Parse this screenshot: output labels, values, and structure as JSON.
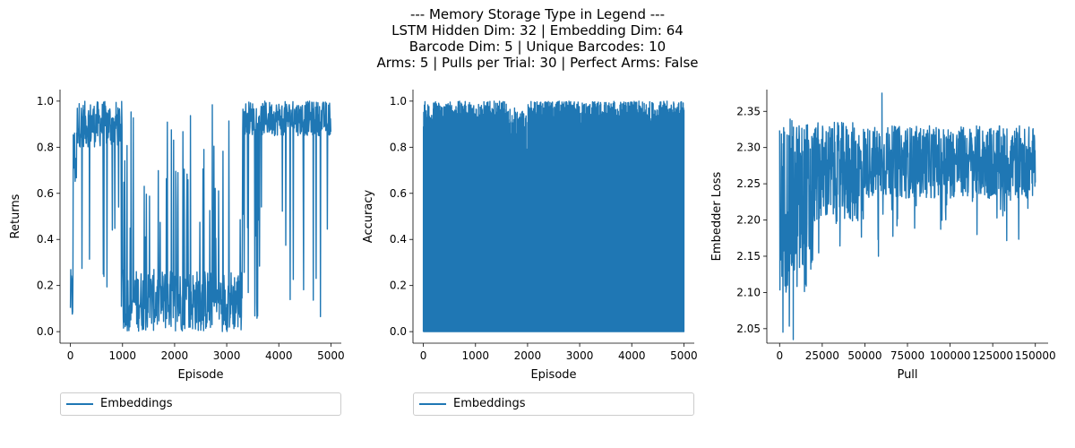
{
  "figure": {
    "title_lines": [
      "--- Memory Storage Type in Legend ---",
      "LSTM Hidden Dim: 32 | Embedding Dim: 64",
      "Barcode Dim: 5 | Unique Barcodes: 10",
      "Arms: 5 | Pulls per Trial: 30 | Perfect Arms: False"
    ]
  },
  "chart_data": [
    {
      "type": "line",
      "xlabel": "Episode",
      "ylabel": "Returns",
      "xlim": [
        -200,
        5200
      ],
      "ylim": [
        -0.05,
        1.05
      ],
      "xticks": [
        0,
        1000,
        2000,
        3000,
        4000,
        5000
      ],
      "yticks": [
        0.0,
        0.2,
        0.4,
        0.6,
        0.8,
        1.0
      ],
      "xtick_labels": [
        "0",
        "1000",
        "2000",
        "3000",
        "4000",
        "5000"
      ],
      "ytick_labels": [
        "0.0",
        "0.2",
        "0.4",
        "0.6",
        "0.8",
        "1.0"
      ],
      "legend": "Embeddings",
      "color": "#1f77b4",
      "segments": [
        {
          "x": [
            0,
            50
          ],
          "y_range": [
            0.03,
            0.27
          ]
        },
        {
          "x": [
            50,
            120
          ],
          "y_range": [
            0.3,
            0.9
          ]
        },
        {
          "x": [
            120,
            1000
          ],
          "y_range": [
            0.6,
            1.0
          ]
        },
        {
          "x": [
            1000,
            3300
          ],
          "y_range": [
            0.0,
            0.27
          ]
        },
        {
          "x": [
            3300,
            5000
          ],
          "y_range": [
            0.7,
            1.0
          ]
        }
      ]
    },
    {
      "type": "line",
      "xlabel": "Episode",
      "ylabel": "Accuracy",
      "xlim": [
        -200,
        5200
      ],
      "ylim": [
        -0.05,
        1.05
      ],
      "xticks": [
        0,
        1000,
        2000,
        3000,
        4000,
        5000
      ],
      "yticks": [
        0.0,
        0.2,
        0.4,
        0.6,
        0.8,
        1.0
      ],
      "xtick_labels": [
        "0",
        "1000",
        "2000",
        "3000",
        "4000",
        "5000"
      ],
      "ytick_labels": [
        "0.0",
        "0.2",
        "0.4",
        "0.6",
        "0.8",
        "1.0"
      ],
      "legend": "Embeddings",
      "color": "#1f77b4",
      "range": {
        "min": 0.0,
        "max": 0.97
      }
    },
    {
      "type": "line",
      "xlabel": "Pull",
      "ylabel": "Embedder Loss",
      "xlim": [
        -7500,
        157500
      ],
      "ylim": [
        2.03,
        2.38
      ],
      "xticks": [
        0,
        25000,
        50000,
        75000,
        100000,
        125000,
        150000
      ],
      "yticks": [
        2.05,
        2.1,
        2.15,
        2.2,
        2.25,
        2.3,
        2.35
      ],
      "xtick_labels": [
        "0",
        "25000",
        "50000",
        "75000",
        "100000",
        "125000",
        "150000"
      ],
      "ytick_labels": [
        "2.05",
        "2.10",
        "2.15",
        "2.20",
        "2.25",
        "2.30",
        "2.35"
      ],
      "color": "#1f77b4",
      "notes": [
        {
          "x": 8000,
          "y": 2.035
        },
        {
          "x": 60000,
          "y": 2.375
        },
        {
          "x": 58000,
          "y": 2.15
        }
      ]
    }
  ]
}
